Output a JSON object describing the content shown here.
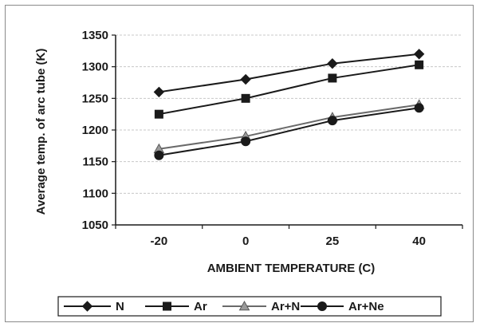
{
  "chart_data": {
    "type": "line",
    "categories": [
      "-20",
      "0",
      "25",
      "40"
    ],
    "series": [
      {
        "name": "N",
        "marker": "diamond",
        "values": [
          1260,
          1280,
          1305,
          1320
        ]
      },
      {
        "name": "Ar",
        "marker": "square",
        "values": [
          1225,
          1250,
          1282,
          1303
        ]
      },
      {
        "name": "Ar+N",
        "marker": "triangle",
        "values": [
          1170,
          1190,
          1220,
          1240
        ]
      },
      {
        "name": "Ar+Ne",
        "marker": "circle",
        "values": [
          1160,
          1182,
          1215,
          1235
        ]
      }
    ],
    "xlabel": "AMBIENT TEMPERATURE (C)",
    "ylabel": "Average temp. of arc tube (K)",
    "ylim": [
      1050,
      1350
    ],
    "yticks": [
      1050,
      1100,
      1150,
      1200,
      1250,
      1300,
      1350
    ],
    "grid": true,
    "legend_position": "bottom",
    "colors": {
      "line": "#1a1a1a",
      "grid": "#c8c8c8",
      "axis": "#1a1a1a"
    }
  }
}
